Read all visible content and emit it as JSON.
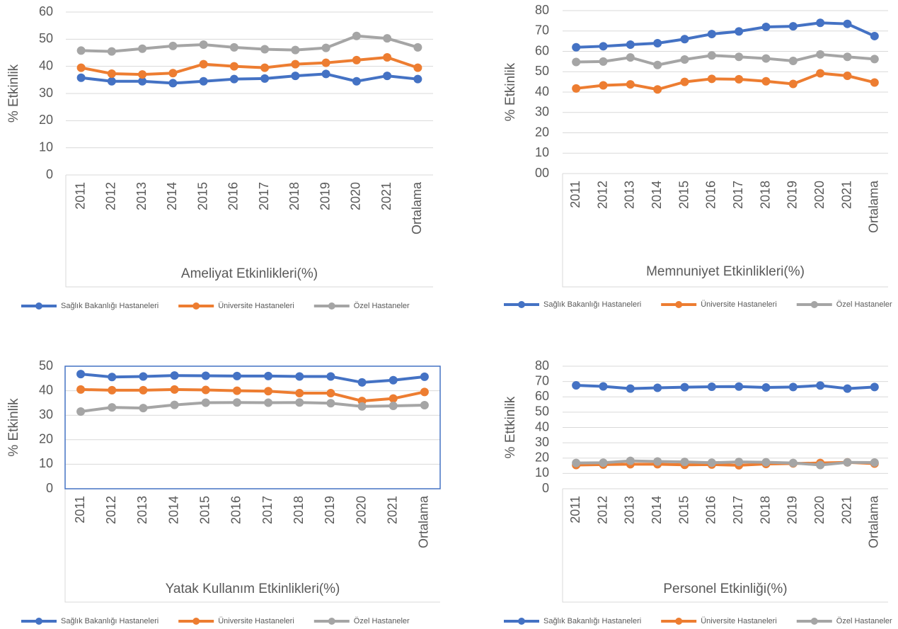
{
  "chart_data": [
    {
      "type": "line",
      "title": "Ameliyat Etkinlikleri(%)",
      "y_label": "% Etkinlik",
      "categories": [
        "2011",
        "2012",
        "2013",
        "2014",
        "2015",
        "2016",
        "2017",
        "2018",
        "2019",
        "2020",
        "2021",
        "Ortalama"
      ],
      "series": [
        {
          "name": "Sağlık Bakanlığı Hastaneleri",
          "color": "#4472c4",
          "values": [
            35.8,
            34.5,
            34.5,
            33.8,
            34.5,
            35.3,
            35.5,
            36.5,
            37.2,
            34.5,
            36.5,
            35.3
          ]
        },
        {
          "name": "Üniversite Hastaneleri",
          "color": "#ed7d31",
          "values": [
            39.5,
            37.3,
            37.0,
            37.5,
            40.8,
            40.0,
            39.5,
            40.8,
            41.3,
            42.3,
            43.3,
            39.5
          ]
        },
        {
          "name": "Özel Hastaneler",
          "color": "#a5a5a5",
          "values": [
            45.8,
            45.5,
            46.5,
            47.5,
            48.0,
            47.0,
            46.3,
            46.0,
            46.8,
            51.2,
            50.3,
            47.0
          ]
        }
      ],
      "ylim": [
        0,
        60
      ],
      "yticks": [
        0,
        10,
        20,
        30,
        40,
        50,
        60
      ],
      "grid": true
    },
    {
      "type": "line",
      "title": "Memnuniyet Etkinlikleri(%)",
      "y_label": "% Etkinlik",
      "categories": [
        "2011",
        "2012",
        "2013",
        "2014",
        "2015",
        "2016",
        "2017",
        "2018",
        "2019",
        "2020",
        "2021",
        "Ortalama"
      ],
      "series": [
        {
          "name": "Sağlık Bakanlığı Hastaneleri",
          "color": "#4472c4",
          "values": [
            62.0,
            62.5,
            63.3,
            64.0,
            66.0,
            68.5,
            69.8,
            72.0,
            72.3,
            74.0,
            73.5,
            67.5
          ]
        },
        {
          "name": "Üniversite Hastaneleri",
          "color": "#ed7d31",
          "values": [
            41.8,
            43.3,
            43.8,
            41.3,
            45.0,
            46.5,
            46.3,
            45.3,
            44.0,
            49.2,
            48.0,
            44.7
          ]
        },
        {
          "name": "Özel Hastaneler",
          "color": "#a5a5a5",
          "values": [
            54.8,
            55.0,
            57.0,
            53.3,
            56.0,
            58.0,
            57.3,
            56.5,
            55.3,
            58.5,
            57.3,
            56.2
          ]
        }
      ],
      "ylim": [
        0,
        80
      ],
      "yticks": [
        {
          "value": 0,
          "label": "00"
        },
        10,
        20,
        30,
        40,
        50,
        60,
        70,
        80
      ],
      "grid": true
    },
    {
      "type": "line",
      "title": "Yatak Kullanım Etkinlikleri(%)",
      "y_label": "% Etkinlik",
      "categories": [
        "2011",
        "2012",
        "2013",
        "2014",
        "2015",
        "2016",
        "2017",
        "2018",
        "2019",
        "2020",
        "2021",
        "Ortalama"
      ],
      "series": [
        {
          "name": "Sağlık Bakanlığı Hastaneleri",
          "color": "#4472c4",
          "values": [
            46.8,
            45.6,
            45.8,
            46.2,
            46.1,
            46.0,
            46.0,
            45.8,
            45.8,
            43.4,
            44.3,
            45.7
          ]
        },
        {
          "name": "Üniversite Hastaneleri",
          "color": "#ed7d31",
          "values": [
            40.5,
            40.2,
            40.2,
            40.5,
            40.3,
            40.0,
            39.8,
            39.0,
            39.0,
            35.8,
            36.8,
            39.5
          ]
        },
        {
          "name": "Özel Hastaneler",
          "color": "#a5a5a5",
          "values": [
            31.5,
            33.2,
            32.9,
            34.2,
            35.1,
            35.2,
            35.1,
            35.2,
            34.9,
            33.6,
            33.8,
            34.1
          ]
        }
      ],
      "ylim": [
        0,
        50
      ],
      "yticks": [
        0,
        10,
        20,
        30,
        40,
        50
      ],
      "grid": true,
      "plot_border_color": "#4472c4"
    },
    {
      "type": "line",
      "title": "Personel Etkinliği(%)",
      "y_label": "% Ettkinlik",
      "categories": [
        "2011",
        "2012",
        "2013",
        "2014",
        "2015",
        "2016",
        "2017",
        "2018",
        "2019",
        "2020",
        "2021",
        "Ortalama"
      ],
      "series": [
        {
          "name": "Sağlık Bakanlığı Hastaneleri",
          "color": "#4472c4",
          "values": [
            67.5,
            66.8,
            65.4,
            65.9,
            66.3,
            66.6,
            66.7,
            66.1,
            66.4,
            67.4,
            65.4,
            66.4
          ]
        },
        {
          "name": "Üniversite Hastaneleri",
          "color": "#ed7d31",
          "values": [
            15.5,
            15.8,
            16.0,
            16.0,
            15.6,
            15.8,
            15.3,
            16.2,
            16.5,
            16.8,
            17.2,
            16.4
          ]
        },
        {
          "name": "Özel Hastaneler",
          "color": "#a5a5a5",
          "values": [
            16.8,
            17.0,
            18.2,
            17.8,
            17.5,
            17.0,
            17.5,
            17.3,
            16.8,
            15.5,
            17.2,
            17.1
          ]
        }
      ],
      "ylim": [
        0,
        80
      ],
      "yticks": [
        0,
        10,
        20,
        30,
        40,
        50,
        60,
        70,
        80
      ],
      "grid": true
    }
  ]
}
